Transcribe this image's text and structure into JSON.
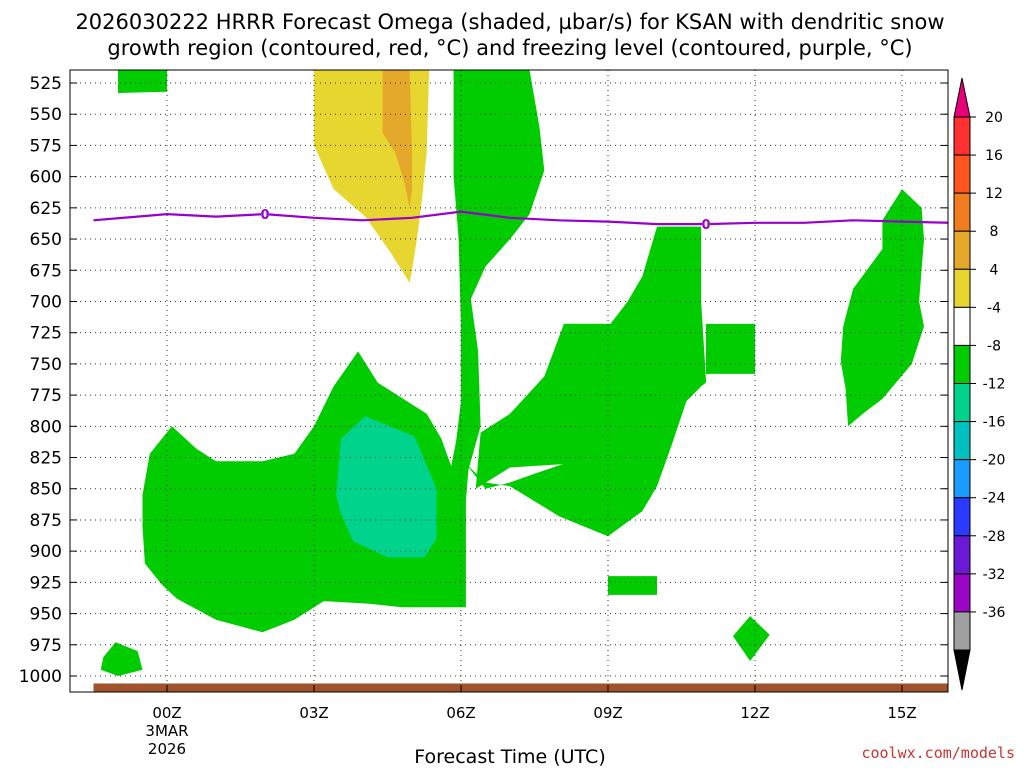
{
  "title": {
    "line1": "2026030222 HRRR Forecast Omega (shaded, µbar/s) for KSAN with dendritic snow",
    "line2": "growth region (contoured, red, °C) and freezing level (contoured, purple, °C)"
  },
  "credit": "coolwx.com/models",
  "colors": {
    "light_green": "#00cc00",
    "teal": "#00d38c",
    "yellow": "#e6d62f",
    "orange": "#e4a82b",
    "freezing_line": "#9900cc",
    "ground": "#a0522d",
    "grid": "#333333"
  },
  "chart_data": {
    "type": "heatmap",
    "xlabel": "Forecast Time (UTC)",
    "ylabel": "",
    "xlim": [
      -1.5,
      16.5
    ],
    "ylim": [
      1010,
      515
    ],
    "x_ticks": [
      {
        "x": 0,
        "label": "00Z",
        "sub1": "3MAR",
        "sub2": "2026"
      },
      {
        "x": 3,
        "label": "03Z",
        "sub1": "",
        "sub2": ""
      },
      {
        "x": 6,
        "label": "06Z",
        "sub1": "",
        "sub2": ""
      },
      {
        "x": 9,
        "label": "09Z",
        "sub1": "",
        "sub2": ""
      },
      {
        "x": 12,
        "label": "12Z",
        "sub1": "",
        "sub2": ""
      },
      {
        "x": 15,
        "label": "15Z",
        "sub1": "",
        "sub2": ""
      }
    ],
    "y_ticks": [
      "525",
      "550",
      "575",
      "600",
      "625",
      "650",
      "675",
      "700",
      "725",
      "750",
      "775",
      "800",
      "825",
      "850",
      "875",
      "900",
      "925",
      "950",
      "975",
      "1000"
    ],
    "colorbar": {
      "labels": [
        "20",
        "16",
        "12",
        "8",
        "4",
        "-4",
        "-8",
        "-12",
        "-16",
        "-20",
        "-24",
        "-28",
        "-32",
        "-36"
      ],
      "colors": [
        "#e8007a",
        "#ff3030",
        "#ff5520",
        "#f07d20",
        "#e4a82b",
        "#e6d62f",
        "#ffffff",
        "#00cc00",
        "#00d38c",
        "#00c0c0",
        "#1a9cff",
        "#2a3aff",
        "#6a1ad6",
        "#9a06c4",
        "#a0a0a0",
        "#000000"
      ]
    },
    "freezing_level": {
      "contour_label": "0",
      "label_x": [
        2,
        11
      ],
      "points": [
        [
          -1.5,
          635
        ],
        [
          0,
          630
        ],
        [
          1,
          632
        ],
        [
          2,
          630
        ],
        [
          3,
          633
        ],
        [
          4,
          635
        ],
        [
          5,
          633
        ],
        [
          6,
          628
        ],
        [
          7,
          633
        ],
        [
          8,
          635
        ],
        [
          9,
          636
        ],
        [
          10,
          638
        ],
        [
          11,
          638
        ],
        [
          12,
          637
        ],
        [
          13,
          637
        ],
        [
          14,
          635
        ],
        [
          15,
          636
        ],
        [
          16,
          637
        ],
        [
          16.5,
          638
        ]
      ]
    },
    "regions": [
      {
        "name": "green-main",
        "color": "#00cc00",
        "points": [
          [
            5.85,
            515
          ],
          [
            7.4,
            515
          ],
          [
            7.6,
            560
          ],
          [
            7.7,
            595
          ],
          [
            7.4,
            630
          ],
          [
            7.0,
            650
          ],
          [
            6.5,
            672
          ],
          [
            6.2,
            698
          ],
          [
            6.35,
            740
          ],
          [
            6.4,
            800
          ],
          [
            6.15,
            835
          ],
          [
            6.1,
            860
          ],
          [
            6.1,
            890
          ],
          [
            6.1,
            945
          ],
          [
            4.8,
            945
          ],
          [
            4.1,
            942
          ],
          [
            3.2,
            940
          ],
          [
            2.6,
            955
          ],
          [
            1.95,
            965
          ],
          [
            1.0,
            955
          ],
          [
            0.2,
            938
          ],
          [
            -0.1,
            927
          ],
          [
            -0.45,
            910
          ],
          [
            -0.5,
            880
          ],
          [
            -0.5,
            855
          ],
          [
            -0.35,
            822
          ],
          [
            0.1,
            800
          ],
          [
            0.6,
            818
          ],
          [
            1.0,
            828
          ],
          [
            1.95,
            828
          ],
          [
            2.6,
            822
          ],
          [
            3.0,
            800
          ],
          [
            3.4,
            768
          ],
          [
            3.9,
            740
          ],
          [
            4.3,
            765
          ],
          [
            5.3,
            790
          ],
          [
            5.6,
            810
          ],
          [
            5.8,
            832
          ],
          [
            5.9,
            812
          ],
          [
            6.0,
            780
          ],
          [
            6.0,
            720
          ],
          [
            5.95,
            650
          ],
          [
            5.85,
            600
          ]
        ]
      },
      {
        "name": "green-middle-right",
        "color": "#00cc00",
        "points": [
          [
            6.1,
            830
          ],
          [
            6.5,
            845
          ],
          [
            7.0,
            848
          ],
          [
            8.0,
            872
          ],
          [
            9.0,
            888
          ],
          [
            9.7,
            868
          ],
          [
            10.0,
            848
          ],
          [
            10.3,
            815
          ],
          [
            10.6,
            780
          ],
          [
            10.9,
            768
          ],
          [
            11.0,
            765
          ],
          [
            11.0,
            718
          ],
          [
            12.0,
            718
          ],
          [
            12.0,
            758
          ],
          [
            11.0,
            758
          ],
          [
            11.0,
            763
          ],
          [
            10.9,
            700
          ],
          [
            10.9,
            640
          ],
          [
            10.0,
            640
          ],
          [
            9.7,
            680
          ],
          [
            9.4,
            700
          ],
          [
            9.05,
            718
          ],
          [
            8.1,
            718
          ],
          [
            8.1,
            830
          ],
          [
            7.5,
            838
          ],
          [
            7.0,
            845
          ],
          [
            6.5,
            850
          ]
        ]
      },
      {
        "name": "green-lower-blob",
        "color": "#00cc00",
        "points": [
          [
            6.3,
            850
          ],
          [
            7.0,
            833
          ],
          [
            8.2,
            830
          ],
          [
            8.9,
            818
          ],
          [
            9.2,
            748
          ],
          [
            9.0,
            718
          ],
          [
            8.1,
            718
          ],
          [
            7.7,
            760
          ],
          [
            7.0,
            790
          ],
          [
            6.4,
            805
          ]
        ]
      },
      {
        "name": "green-right-small",
        "color": "#00cc00",
        "points": [
          [
            13.8,
            720
          ],
          [
            14.0,
            690
          ],
          [
            14.6,
            658
          ],
          [
            14.6,
            635
          ],
          [
            15.0,
            610
          ],
          [
            15.4,
            625
          ],
          [
            15.45,
            650
          ],
          [
            15.35,
            700
          ],
          [
            15.45,
            720
          ],
          [
            15.2,
            750
          ],
          [
            14.6,
            778
          ],
          [
            14.2,
            790
          ],
          [
            13.9,
            800
          ],
          [
            13.85,
            770
          ],
          [
            13.75,
            748
          ]
        ]
      },
      {
        "name": "green-top-left",
        "color": "#00cc00",
        "points": [
          [
            -1.0,
            515
          ],
          [
            0.0,
            515
          ],
          [
            0.0,
            532
          ],
          [
            -1.0,
            533
          ]
        ]
      },
      {
        "name": "green-bottom-left",
        "color": "#00cc00",
        "points": [
          [
            -1.3,
            985
          ],
          [
            -1.05,
            973
          ],
          [
            -0.6,
            980
          ],
          [
            -0.5,
            995
          ],
          [
            -1.0,
            1000
          ],
          [
            -1.35,
            995
          ]
        ]
      },
      {
        "name": "green-09z-rect",
        "color": "#00cc00",
        "points": [
          [
            9.0,
            920
          ],
          [
            10.0,
            920
          ],
          [
            10.0,
            935
          ],
          [
            9.0,
            935
          ]
        ]
      },
      {
        "name": "green-12z-blob",
        "color": "#00cc00",
        "points": [
          [
            11.55,
            968
          ],
          [
            11.9,
            952
          ],
          [
            12.3,
            967
          ],
          [
            11.9,
            988
          ]
        ]
      },
      {
        "name": "teal-blob",
        "color": "#00d38c",
        "points": [
          [
            3.55,
            810
          ],
          [
            4.05,
            792
          ],
          [
            5.05,
            808
          ],
          [
            5.5,
            850
          ],
          [
            5.5,
            890
          ],
          [
            5.25,
            905
          ],
          [
            4.5,
            905
          ],
          [
            3.8,
            892
          ],
          [
            3.55,
            870
          ],
          [
            3.45,
            855
          ]
        ]
      },
      {
        "name": "yellow-top",
        "color": "#e6d62f",
        "points": [
          [
            3.0,
            515
          ],
          [
            5.35,
            515
          ],
          [
            5.3,
            580
          ],
          [
            5.2,
            620
          ],
          [
            5.1,
            650
          ],
          [
            5.0,
            675
          ],
          [
            4.95,
            685
          ],
          [
            4.55,
            660
          ],
          [
            4.05,
            632
          ],
          [
            3.4,
            610
          ],
          [
            3.0,
            575
          ]
        ]
      },
      {
        "name": "orange-top",
        "color": "#e4a82b",
        "points": [
          [
            4.4,
            515
          ],
          [
            4.95,
            515
          ],
          [
            5.0,
            580
          ],
          [
            5.0,
            610
          ],
          [
            4.95,
            625
          ],
          [
            4.85,
            605
          ],
          [
            4.65,
            580
          ],
          [
            4.4,
            565
          ]
        ]
      }
    ],
    "ground": {
      "color": "#a0522d",
      "from_x": -1.5,
      "to_x": 16.5,
      "bottom_pressure": 1010,
      "top_pressure": 1006
    }
  }
}
